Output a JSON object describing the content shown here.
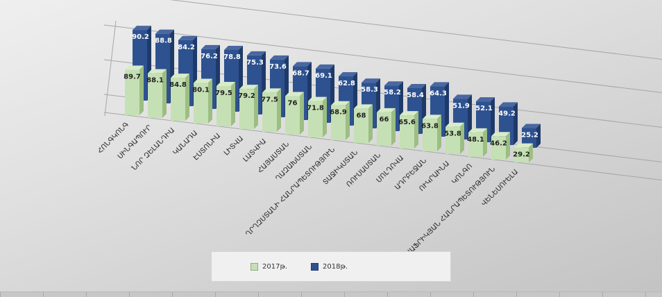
{
  "chart_data": {
    "type": "bar",
    "variant": "3d-clustered-perspective",
    "title": "",
    "xlabel": "",
    "ylabel": "",
    "ylim": [
      0,
      100
    ],
    "grid": true,
    "value_labels_shown": true,
    "legend_position": "bottom",
    "categories": [
      "ՀՈՆԳԿՈՆԳ",
      "ՍԻՆԳԱՊՈՒՐ",
      "ՆՈՐ ԶԵԼԱՆԴԻԱ",
      "ԿԱՆԱԴԱ",
      "ԷՍՏՈՆԻԱ",
      "ԼԻՏՎԱ",
      "ԼԱՏՎԻԱ",
      "ՀԱՅԱՍՏԱՆ",
      "ՂԱԶԱԽՍՏԱՆ",
      "ՂՐՂԶՍՏԱՆԻ ՀԱՆՐԱՊԵՏՈՒԹՅՈՒՆ",
      "ՏԱՋԻԿՍՏԱՆ",
      "ՌՈՒՍԱՍՏԱՆ",
      "ՄՈԼԴՈՎԱ",
      "ԱԴՐԲԵՋԱՆ",
      "ՈՒԿՐԱԻՆԱ",
      "ԿՈՆԳՈ",
      "ԿԵՆՏՐՈՆԱԱՖՐԻԿՅԱՆ ՀԱՆՐԱՊԵՏՈՒԹՅՈՒՆ",
      "ՎԵՆԵՍՈՒԵԼԱ"
    ],
    "series": [
      {
        "name": "2017թ.",
        "color": "#c5e0b4",
        "color_top": "#d9ecca",
        "color_side": "#9cbe83",
        "label_color": "#1f1f1f",
        "values": [
          89.7,
          88.1,
          84.8,
          80.1,
          79.5,
          79.2,
          77.5,
          76,
          71.8,
          68.9,
          68,
          66,
          65.6,
          63.8,
          53.8,
          48.1,
          46.2,
          29.2
        ]
      },
      {
        "name": "2018թ.",
        "color": "#2e5290",
        "color_top": "#4a67a0",
        "color_side": "#1e3a69",
        "label_color": "#ffffff",
        "values": [
          90.2,
          88.8,
          84.2,
          76.2,
          78.8,
          75.3,
          73.6,
          68.7,
          69.1,
          62.8,
          58.3,
          58.2,
          58.4,
          64.3,
          51.9,
          52.1,
          49.2,
          25.2
        ]
      }
    ]
  },
  "colors": {
    "background_light": "#efefef",
    "background_dark": "#c3c3c3",
    "gridline": "#a6a6a6",
    "category_label": "#2a2a2a",
    "legend_background": "#f0f0f0"
  }
}
